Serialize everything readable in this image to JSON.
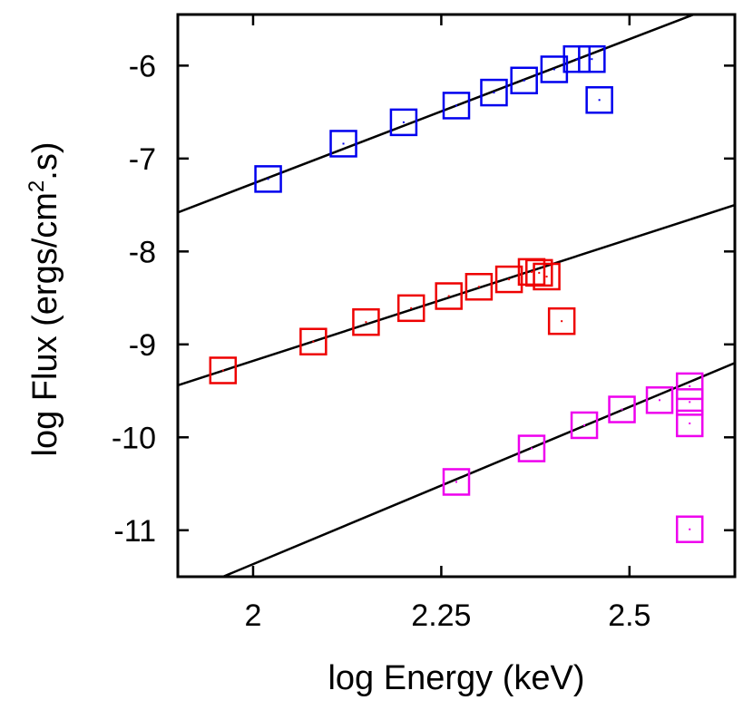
{
  "chart_data": {
    "type": "scatter",
    "title": "",
    "xlabel": "log Energy (keV)",
    "ylabel": {
      "prefix": "log Flux (ergs/cm",
      "sup": "2",
      "suffix": ".s)"
    },
    "xlim": [
      1.9,
      2.64
    ],
    "ylim": [
      -11.5,
      -5.45
    ],
    "xticks": [
      2,
      2.25,
      2.5
    ],
    "xtick_labels": [
      "2",
      "2.25",
      "2.5"
    ],
    "yticks": [
      -6,
      -7,
      -8,
      -9,
      -10,
      -11
    ],
    "ytick_labels": [
      "-6",
      "-7",
      "-8",
      "-9",
      "-10",
      "-11"
    ],
    "grid": false,
    "legend": "none",
    "marker": "open-square",
    "series": [
      {
        "name": "blue-series",
        "color": "#0000ee",
        "points": [
          {
            "x": 2.02,
            "y": -7.22
          },
          {
            "x": 2.12,
            "y": -6.84
          },
          {
            "x": 2.2,
            "y": -6.61
          },
          {
            "x": 2.27,
            "y": -6.43
          },
          {
            "x": 2.32,
            "y": -6.29
          },
          {
            "x": 2.36,
            "y": -6.16
          },
          {
            "x": 2.4,
            "y": -6.04
          },
          {
            "x": 2.43,
            "y": -5.93
          },
          {
            "x": 2.45,
            "y": -5.93
          },
          {
            "x": 2.46,
            "y": -6.37
          }
        ],
        "fit": {
          "x1": 1.9,
          "y1": -7.58,
          "x2": 2.64,
          "y2": -5.28
        }
      },
      {
        "name": "red-series",
        "color": "#ee0000",
        "points": [
          {
            "x": 1.96,
            "y": -9.28
          },
          {
            "x": 2.08,
            "y": -8.97
          },
          {
            "x": 2.15,
            "y": -8.76
          },
          {
            "x": 2.21,
            "y": -8.61
          },
          {
            "x": 2.26,
            "y": -8.48
          },
          {
            "x": 2.3,
            "y": -8.38
          },
          {
            "x": 2.34,
            "y": -8.3
          },
          {
            "x": 2.37,
            "y": -8.22
          },
          {
            "x": 2.38,
            "y": -8.23
          },
          {
            "x": 2.39,
            "y": -8.27
          },
          {
            "x": 2.41,
            "y": -8.75
          }
        ],
        "fit": {
          "x1": 1.9,
          "y1": -9.44,
          "x2": 2.64,
          "y2": -7.5
        }
      },
      {
        "name": "magenta-series",
        "color": "#ee00ee",
        "points": [
          {
            "x": 2.27,
            "y": -10.48
          },
          {
            "x": 2.37,
            "y": -10.12
          },
          {
            "x": 2.44,
            "y": -9.87
          },
          {
            "x": 2.49,
            "y": -9.7
          },
          {
            "x": 2.54,
            "y": -9.6
          },
          {
            "x": 2.58,
            "y": -9.45
          },
          {
            "x": 2.58,
            "y": -9.62
          },
          {
            "x": 2.58,
            "y": -9.85
          },
          {
            "x": 2.58,
            "y": -10.99
          }
        ],
        "fit": {
          "x1": 1.96,
          "y1": -11.5,
          "x2": 2.64,
          "y2": -9.2
        }
      }
    ]
  }
}
